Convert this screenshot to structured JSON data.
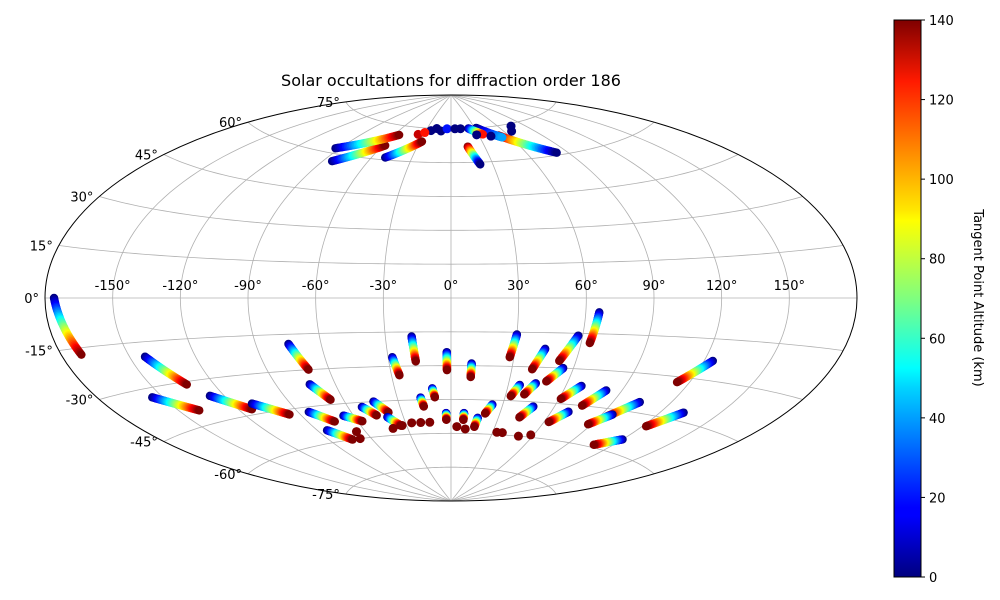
{
  "chart_data": {
    "type": "scatter",
    "projection": "aitoff",
    "title": "Solar occultations for diffraction order 186",
    "grid": true,
    "lon_ticks": [
      -150,
      -120,
      -90,
      -60,
      -30,
      0,
      30,
      60,
      90,
      120,
      150
    ],
    "lon_tick_labels": [
      "-150°",
      "-120°",
      "-90°",
      "-60°",
      "-30°",
      "0°",
      "30°",
      "60°",
      "90°",
      "120°",
      "150°"
    ],
    "lat_ticks": [
      75,
      60,
      45,
      30,
      15,
      0,
      -15,
      -30,
      -45,
      -60,
      -75
    ],
    "lat_tick_labels": [
      "75°",
      "60°",
      "45°",
      "30°",
      "15°",
      "0°",
      "-15°",
      "-30°",
      "-45°",
      "-60°",
      "-75°"
    ],
    "lat_tick_side": [
      "left",
      "left",
      "left",
      "left",
      "left",
      "left",
      "left",
      "left",
      "left",
      "left",
      "left"
    ],
    "colorbar": {
      "label": "Tangent Point Altitude (km)",
      "min": 0,
      "max": 140,
      "ticks": [
        0,
        20,
        40,
        60,
        80,
        100,
        120,
        140
      ],
      "tick_labels": [
        "0",
        "20",
        "40",
        "60",
        "80",
        "100",
        "120",
        "140"
      ],
      "colormap": "jet"
    },
    "tracks": [
      {
        "lon_start": -176,
        "lat_start": 0,
        "lon_end": -171,
        "lat_end": -17,
        "alt_start": 0,
        "alt_end": 140
      },
      {
        "lon_start": -143,
        "lat_start": -20,
        "lon_end": -133,
        "lat_end": -31,
        "alt_start": 0,
        "alt_end": 140
      },
      {
        "lon_start": -155,
        "lat_start": -33,
        "lon_end": -140,
        "lat_end": -40,
        "alt_start": 0,
        "alt_end": 140
      },
      {
        "lon_start": -127,
        "lat_start": -36,
        "lon_end": -113,
        "lat_end": -43,
        "alt_start": 0,
        "alt_end": 140
      },
      {
        "lon_start": -110,
        "lat_start": -41,
        "lon_end": -96,
        "lat_end": -47,
        "alt_start": 0,
        "alt_end": 140
      },
      {
        "lon_start": -75,
        "lat_start": -19,
        "lon_end": -70,
        "lat_end": -30,
        "alt_start": 0,
        "alt_end": 140
      },
      {
        "lon_start": -73,
        "lat_start": -36,
        "lon_end": -67,
        "lat_end": -43,
        "alt_start": 0,
        "alt_end": 140
      },
      {
        "lon_start": -84,
        "lat_start": -47,
        "lon_end": -74,
        "lat_end": -52,
        "alt_start": 0,
        "alt_end": 140
      },
      {
        "lon_start": -66,
        "lat_start": -50,
        "lon_end": -57,
        "lat_end": -53,
        "alt_start": 0,
        "alt_end": 140
      },
      {
        "lon_start": -52,
        "lat_start": -47,
        "lon_end": -46,
        "lat_end": -51,
        "alt_start": 0,
        "alt_end": 140
      },
      {
        "lon_start": -44,
        "lat_start": -45,
        "lon_end": -38,
        "lat_end": -50,
        "alt_start": 0,
        "alt_end": 140
      },
      {
        "lon_start": -28,
        "lat_start": -26,
        "lon_end": -26,
        "lat_end": -34,
        "alt_start": 0,
        "alt_end": 140
      },
      {
        "lon_start": -18,
        "lat_start": -17,
        "lon_end": -17,
        "lat_end": -28,
        "alt_start": 0,
        "alt_end": 140
      },
      {
        "lon_start": -2,
        "lat_start": -24,
        "lon_end": -2,
        "lat_end": -32,
        "alt_start": 0,
        "alt_end": 140
      },
      {
        "lon_start": 10,
        "lat_start": -29,
        "lon_end": 10,
        "lat_end": -35,
        "alt_start": 0,
        "alt_end": 140
      },
      {
        "lon_start": -10,
        "lat_start": -40,
        "lon_end": -9,
        "lat_end": -44,
        "alt_start": 0,
        "alt_end": 140
      },
      {
        "lon_start": -17,
        "lat_start": -44,
        "lon_end": -16,
        "lat_end": -48,
        "alt_start": 0,
        "alt_end": 140
      },
      {
        "lon_start": 30,
        "lat_start": -16,
        "lon_end": 28,
        "lat_end": -26,
        "alt_start": 0,
        "alt_end": 140
      },
      {
        "lon_start": 44,
        "lat_start": -22,
        "lon_end": 40,
        "lat_end": -31,
        "alt_start": 0,
        "alt_end": 140
      },
      {
        "lon_start": 58,
        "lat_start": -16,
        "lon_end": 52,
        "lat_end": -27,
        "alt_start": 0,
        "alt_end": 140
      },
      {
        "lon_start": 55,
        "lat_start": -30,
        "lon_end": 49,
        "lat_end": -36,
        "alt_start": 0,
        "alt_end": 140
      },
      {
        "lon_start": 66,
        "lat_start": -6,
        "lon_end": 64,
        "lat_end": -19,
        "alt_start": 0,
        "alt_end": 140
      },
      {
        "lon_start": 124,
        "lat_start": -23,
        "lon_end": 114,
        "lat_end": -32,
        "alt_start": 0,
        "alt_end": 140
      },
      {
        "lon_start": 36,
        "lat_start": -38,
        "lon_end": 33,
        "lat_end": -43,
        "alt_start": 0,
        "alt_end": 140
      },
      {
        "lon_start": 44,
        "lat_start": -37,
        "lon_end": 40,
        "lat_end": -42,
        "alt_start": 0,
        "alt_end": 140
      },
      {
        "lon_start": 68,
        "lat_start": -37,
        "lon_end": 61,
        "lat_end": -43,
        "alt_start": 0,
        "alt_end": 140
      },
      {
        "lon_start": 82,
        "lat_start": -38,
        "lon_end": 75,
        "lat_end": -45,
        "alt_start": 0,
        "alt_end": 140
      },
      {
        "lon_start": 104,
        "lat_start": -41,
        "lon_end": 94,
        "lat_end": -48,
        "alt_start": 0,
        "alt_end": 140
      },
      {
        "lon_start": 132,
        "lat_start": -42,
        "lon_end": 122,
        "lat_end": -49,
        "alt_start": 0,
        "alt_end": 140
      },
      {
        "lon_start": 24,
        "lat_start": -47,
        "lon_end": 21,
        "lat_end": -51,
        "alt_start": 0,
        "alt_end": 140
      },
      {
        "lon_start": 48,
        "lat_start": -47,
        "lon_end": 43,
        "lat_end": -52,
        "alt_start": 0,
        "alt_end": 140
      },
      {
        "lon_start": 70,
        "lat_start": -48,
        "lon_end": 63,
        "lat_end": -53,
        "alt_start": 0,
        "alt_end": 140
      },
      {
        "lon_start": 96,
        "lat_start": -47,
        "lon_end": 88,
        "lat_end": -52,
        "alt_start": 0,
        "alt_end": 140
      },
      {
        "lon_start": 120,
        "lat_start": -55,
        "lon_end": 108,
        "lat_end": -59,
        "alt_start": 0,
        "alt_end": 140
      },
      {
        "lon_start": -84,
        "lat_start": -55,
        "lon_end": -74,
        "lat_end": -60,
        "alt_start": 0,
        "alt_end": 140
      },
      {
        "lon_start": -40,
        "lat_start": -52,
        "lon_end": -34,
        "lat_end": -56,
        "alt_start": 0,
        "alt_end": 140
      },
      {
        "lon_start": -3,
        "lat_start": -51,
        "lon_end": -3,
        "lat_end": -54,
        "alt_start": 0,
        "alt_end": 140
      },
      {
        "lon_start": 8,
        "lat_start": -51,
        "lon_end": 8,
        "lat_end": -54,
        "alt_start": 0,
        "alt_end": 140
      },
      {
        "lon_start": 17,
        "lat_start": -53,
        "lon_end": 16,
        "lat_end": -57,
        "alt_start": 0,
        "alt_end": 140
      },
      {
        "lon_start": -84,
        "lat_start": 57,
        "lon_end": -58,
        "lat_end": 66,
        "alt_start": 0,
        "alt_end": 140
      },
      {
        "lon_start": -93,
        "lat_start": 62,
        "lon_end": -55,
        "lat_end": 71,
        "alt_start": 0,
        "alt_end": 140
      },
      {
        "lon_start": -50,
        "lat_start": 61,
        "lon_end": -28,
        "lat_end": 69,
        "alt_start": 0,
        "alt_end": 140
      },
      {
        "lon_start": 15,
        "lat_start": 67,
        "lon_end": 21,
        "lat_end": 59,
        "alt_start": 140,
        "alt_end": 0
      },
      {
        "lon_start": 50,
        "lat_start": 71,
        "lon_end": 82,
        "lat_end": 61,
        "alt_start": 140,
        "alt_end": 0
      },
      {
        "lon_start": 32,
        "lat_start": 75,
        "lon_end": 52,
        "lat_end": 70,
        "alt_start": 0,
        "alt_end": 40
      },
      {
        "lon_start": 22,
        "lat_start": 75,
        "lon_end": 35,
        "lat_end": 72,
        "alt_start": 0,
        "alt_end": 120
      }
    ],
    "points": [
      {
        "lon": -40,
        "lat": -57,
        "alt": 140
      },
      {
        "lon": -33,
        "lat": -56,
        "alt": 140
      },
      {
        "lon": -26,
        "lat": -55,
        "alt": 140
      },
      {
        "lon": -20,
        "lat": -55,
        "alt": 140
      },
      {
        "lon": -14,
        "lat": -55,
        "alt": 140
      },
      {
        "lon": 4,
        "lat": -57,
        "alt": 140
      },
      {
        "lon": 10,
        "lat": -58,
        "alt": 140
      },
      {
        "lon": 33,
        "lat": -59,
        "alt": 140
      },
      {
        "lon": 37,
        "lat": -59,
        "alt": 140
      },
      {
        "lon": 50,
        "lat": -60,
        "alt": 140
      },
      {
        "lon": 58,
        "lat": -59,
        "alt": 140
      },
      {
        "lon": -66,
        "lat": -57,
        "alt": 140
      },
      {
        "lon": -68,
        "lat": -60,
        "alt": 140
      },
      {
        "lon": -24,
        "lat": 74,
        "alt": 0
      },
      {
        "lon": -18,
        "lat": 75,
        "alt": 0
      },
      {
        "lon": -12,
        "lat": 74,
        "alt": 0
      },
      {
        "lon": -5,
        "lat": 75,
        "alt": 20
      },
      {
        "lon": 5,
        "lat": 75,
        "alt": 0
      },
      {
        "lon": 12,
        "lat": 75,
        "alt": 0
      },
      {
        "lon": 42,
        "lat": 71,
        "alt": 0
      },
      {
        "lon": 68,
        "lat": 72,
        "alt": 0
      },
      {
        "lon": 75,
        "lat": 74,
        "alt": 0
      },
      {
        "lon": 28,
        "lat": 72,
        "alt": 0
      },
      {
        "lon": -36,
        "lat": 72,
        "alt": 130
      },
      {
        "lon": -30,
        "lat": 73,
        "alt": 120
      }
    ]
  }
}
